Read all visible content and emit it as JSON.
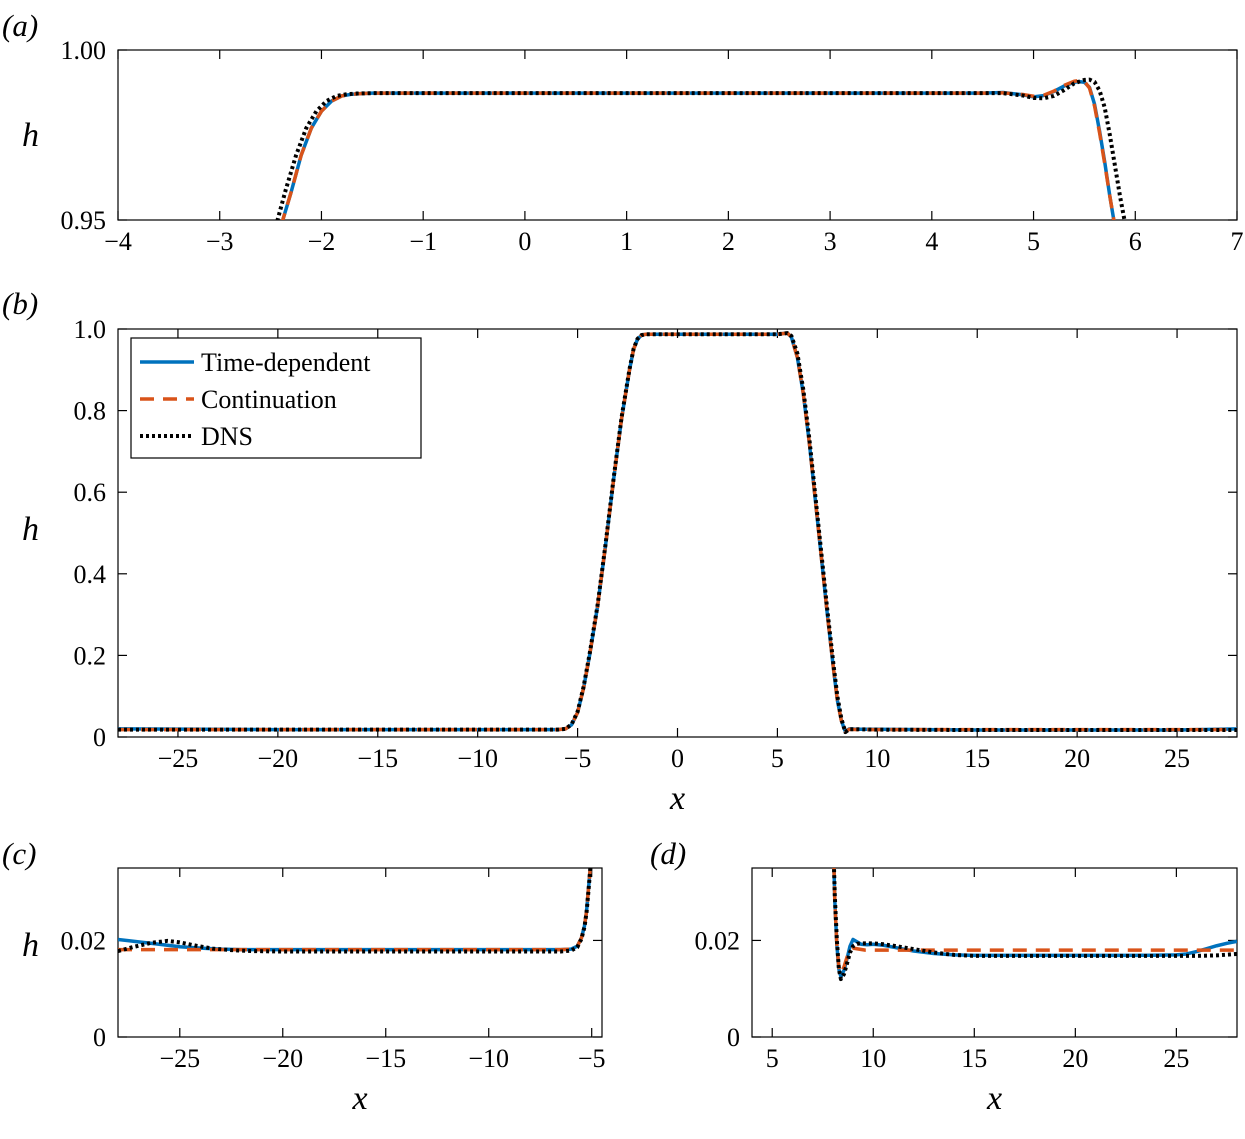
{
  "figure": {
    "panels": [
      {
        "id": "a",
        "label": "(a)"
      },
      {
        "id": "b",
        "label": "(b)"
      },
      {
        "id": "c",
        "label": "(c)"
      },
      {
        "id": "d",
        "label": "(d)"
      }
    ]
  },
  "style": {
    "series_colors": {
      "time_dependent": "#0072BD",
      "continuation": "#D95319",
      "dns": "#000000"
    },
    "line_styles": {
      "time_dependent": "solid",
      "continuation": "dashed",
      "dns": "dotted"
    }
  },
  "chart_data": [
    {
      "panel": "a",
      "type": "line",
      "xlabel": "",
      "ylabel": "h",
      "xlim": [
        -4,
        7
      ],
      "ylim": [
        0.95,
        1.0
      ],
      "xticks": [
        -4,
        -3,
        -2,
        -1,
        0,
        1,
        2,
        3,
        4,
        5,
        6,
        7
      ],
      "xtick_labels": [
        "−4",
        "−3",
        "−2",
        "−1",
        "0",
        "1",
        "2",
        "3",
        "4",
        "5",
        "6",
        "7"
      ],
      "yticks": [
        0.95,
        1.0
      ],
      "ytick_labels": [
        "0.95",
        "1.00"
      ],
      "grid": false,
      "series": [
        {
          "key": "time_dependent",
          "x": [
            -2.4,
            -2.3,
            -2.2,
            -2.1,
            -2.0,
            -1.9,
            -1.8,
            -1.7,
            -1.6,
            -1.5,
            -1.0,
            0,
            2,
            4,
            4.5,
            4.7,
            4.9,
            5.0,
            5.1,
            5.2,
            5.3,
            5.4,
            5.45,
            5.5,
            5.55,
            5.6,
            5.65,
            5.7,
            5.75,
            5.8
          ],
          "y": [
            0.948,
            0.958,
            0.969,
            0.977,
            0.982,
            0.985,
            0.9865,
            0.987,
            0.9872,
            0.9873,
            0.9873,
            0.9873,
            0.9873,
            0.9873,
            0.9873,
            0.9875,
            0.9868,
            0.9862,
            0.9866,
            0.9878,
            0.9894,
            0.9905,
            0.9907,
            0.9905,
            0.989,
            0.984,
            0.976,
            0.967,
            0.957,
            0.948
          ]
        },
        {
          "key": "continuation",
          "x": [
            -2.4,
            -2.3,
            -2.2,
            -2.1,
            -2.0,
            -1.9,
            -1.8,
            -1.7,
            -1.6,
            -1.5,
            -1.0,
            0,
            2,
            4,
            4.5,
            4.7,
            4.9,
            5.0,
            5.1,
            5.2,
            5.3,
            5.4,
            5.45,
            5.5,
            5.55,
            5.6,
            5.65,
            5.7,
            5.75,
            5.8
          ],
          "y": [
            0.948,
            0.958,
            0.969,
            0.977,
            0.982,
            0.985,
            0.9865,
            0.987,
            0.9872,
            0.9873,
            0.9873,
            0.9873,
            0.9873,
            0.9873,
            0.9873,
            0.9874,
            0.9869,
            0.9864,
            0.9867,
            0.9879,
            0.9896,
            0.9908,
            0.991,
            0.9908,
            0.9888,
            0.9835,
            0.9755,
            0.9665,
            0.957,
            0.948
          ]
        },
        {
          "key": "dns",
          "x": [
            -2.45,
            -2.35,
            -2.25,
            -2.15,
            -2.05,
            -1.95,
            -1.85,
            -1.75,
            -1.65,
            -1.5,
            -1.0,
            0,
            2,
            4,
            4.5,
            4.7,
            4.9,
            5.0,
            5.1,
            5.2,
            5.3,
            5.4,
            5.5,
            5.55,
            5.6,
            5.65,
            5.7,
            5.75,
            5.8,
            5.85,
            5.9
          ],
          "y": [
            0.948,
            0.959,
            0.969,
            0.977,
            0.982,
            0.985,
            0.9865,
            0.987,
            0.9872,
            0.9873,
            0.9873,
            0.9873,
            0.9873,
            0.9873,
            0.9873,
            0.9873,
            0.9866,
            0.9859,
            0.9858,
            0.9865,
            0.9882,
            0.9902,
            0.9912,
            0.9913,
            0.9906,
            0.988,
            0.983,
            0.975,
            0.966,
            0.957,
            0.949
          ]
        }
      ]
    },
    {
      "panel": "b",
      "type": "line",
      "xlabel": "x",
      "ylabel": "h",
      "xlim": [
        -28,
        28
      ],
      "ylim": [
        0,
        1.0
      ],
      "xticks": [
        -25,
        -20,
        -15,
        -10,
        -5,
        0,
        5,
        10,
        15,
        20,
        25
      ],
      "xtick_labels": [
        "−25",
        "−20",
        "−15",
        "−10",
        "−5",
        "0",
        "5",
        "10",
        "15",
        "20",
        "25"
      ],
      "yticks": [
        0,
        0.2,
        0.4,
        0.6,
        0.8,
        1.0
      ],
      "ytick_labels": [
        "0",
        "0.2",
        "0.4",
        "0.6",
        "0.8",
        "1.0"
      ],
      "grid": false,
      "legend": {
        "position": "top-left",
        "entries": [
          {
            "key": "time_dependent",
            "label": "Time-dependent"
          },
          {
            "key": "continuation",
            "label": "Continuation"
          },
          {
            "key": "dns",
            "label": "DNS"
          }
        ]
      },
      "series": [
        {
          "key": "time_dependent",
          "x": [
            -28,
            -20,
            -10,
            -6,
            -5.6,
            -5.3,
            -5.0,
            -4.7,
            -4.4,
            -4.0,
            -3.6,
            -3.2,
            -2.8,
            -2.4,
            -2.2,
            -2.0,
            -1.8,
            -1.6,
            0,
            3,
            5,
            5.3,
            5.5,
            5.7,
            6.0,
            6.3,
            6.6,
            6.9,
            7.2,
            7.5,
            7.8,
            8.0,
            8.2,
            8.4,
            8.6,
            9,
            10,
            15,
            20,
            25,
            28
          ],
          "y": [
            0.02,
            0.018,
            0.018,
            0.018,
            0.02,
            0.03,
            0.06,
            0.12,
            0.2,
            0.32,
            0.47,
            0.63,
            0.78,
            0.9,
            0.95,
            0.975,
            0.985,
            0.987,
            0.987,
            0.987,
            0.987,
            0.989,
            0.99,
            0.98,
            0.93,
            0.84,
            0.72,
            0.58,
            0.44,
            0.3,
            0.17,
            0.09,
            0.04,
            0.013,
            0.02,
            0.019,
            0.019,
            0.017,
            0.017,
            0.017,
            0.02
          ]
        },
        {
          "key": "continuation",
          "x": [
            -28,
            -20,
            -10,
            -6,
            -5.6,
            -5.3,
            -5.0,
            -4.7,
            -4.4,
            -4.0,
            -3.6,
            -3.2,
            -2.8,
            -2.4,
            -2.2,
            -2.0,
            -1.8,
            -1.6,
            0,
            3,
            5,
            5.3,
            5.5,
            5.7,
            6.0,
            6.3,
            6.6,
            6.9,
            7.2,
            7.5,
            7.8,
            8.0,
            8.2,
            8.4,
            8.6,
            9,
            10,
            15,
            20,
            25,
            28
          ],
          "y": [
            0.018,
            0.018,
            0.018,
            0.018,
            0.02,
            0.03,
            0.06,
            0.12,
            0.2,
            0.32,
            0.47,
            0.63,
            0.78,
            0.9,
            0.95,
            0.975,
            0.985,
            0.987,
            0.987,
            0.987,
            0.987,
            0.989,
            0.99,
            0.98,
            0.93,
            0.84,
            0.72,
            0.58,
            0.44,
            0.3,
            0.17,
            0.09,
            0.04,
            0.013,
            0.019,
            0.018,
            0.018,
            0.018,
            0.018,
            0.018,
            0.018
          ]
        },
        {
          "key": "dns",
          "x": [
            -28,
            -20,
            -10,
            -6,
            -5.6,
            -5.3,
            -5.0,
            -4.7,
            -4.4,
            -4.0,
            -3.6,
            -3.2,
            -2.8,
            -2.4,
            -2.2,
            -2.0,
            -1.8,
            -1.6,
            0,
            3,
            5,
            5.3,
            5.5,
            5.7,
            6.0,
            6.3,
            6.6,
            6.9,
            7.2,
            7.5,
            7.8,
            8.0,
            8.2,
            8.4,
            8.6,
            9,
            10,
            15,
            20,
            25,
            28
          ],
          "y": [
            0.018,
            0.018,
            0.018,
            0.018,
            0.02,
            0.031,
            0.062,
            0.123,
            0.203,
            0.323,
            0.473,
            0.633,
            0.783,
            0.902,
            0.951,
            0.976,
            0.985,
            0.987,
            0.987,
            0.987,
            0.987,
            0.989,
            0.99,
            0.983,
            0.94,
            0.85,
            0.73,
            0.59,
            0.45,
            0.31,
            0.18,
            0.1,
            0.045,
            0.012,
            0.019,
            0.019,
            0.018,
            0.017,
            0.017,
            0.017,
            0.017
          ]
        }
      ]
    },
    {
      "panel": "c",
      "type": "line",
      "xlabel": "x",
      "ylabel": "h",
      "xlim": [
        -28,
        -4.5
      ],
      "ylim": [
        0,
        0.035
      ],
      "xticks": [
        -25,
        -20,
        -15,
        -10,
        -5
      ],
      "xtick_labels": [
        "−25",
        "−20",
        "−15",
        "−10",
        "−5"
      ],
      "yticks": [
        0,
        0.02
      ],
      "ytick_labels": [
        "0",
        "0.02"
      ],
      "grid": false,
      "series": [
        {
          "key": "time_dependent",
          "x": [
            -28,
            -27,
            -26,
            -25,
            -24,
            -23,
            -22,
            -20,
            -15,
            -10,
            -6.5,
            -6,
            -5.7,
            -5.5,
            -5.35,
            -5.25,
            -5.15,
            -5.05
          ],
          "y": [
            0.0202,
            0.0197,
            0.0192,
            0.0187,
            0.0184,
            0.0182,
            0.0181,
            0.0181,
            0.0181,
            0.0181,
            0.0181,
            0.0182,
            0.0188,
            0.0205,
            0.023,
            0.026,
            0.031,
            0.036
          ]
        },
        {
          "key": "continuation",
          "x": [
            -28,
            -26,
            -24,
            -22,
            -20,
            -15,
            -10,
            -6.5,
            -6,
            -5.7,
            -5.5,
            -5.35,
            -5.25,
            -5.15,
            -5.05
          ],
          "y": [
            0.0181,
            0.0181,
            0.0181,
            0.0181,
            0.0181,
            0.0181,
            0.0181,
            0.0181,
            0.0182,
            0.0188,
            0.0205,
            0.023,
            0.026,
            0.031,
            0.036
          ]
        },
        {
          "key": "dns",
          "x": [
            -28,
            -27.2,
            -26.4,
            -25.6,
            -25,
            -24.2,
            -23.4,
            -22.5,
            -21.5,
            -20,
            -15,
            -10,
            -6.5,
            -6,
            -5.7,
            -5.5,
            -5.35,
            -5.25,
            -5.15,
            -5.05
          ],
          "y": [
            0.0178,
            0.0187,
            0.0195,
            0.0199,
            0.0196,
            0.0189,
            0.0183,
            0.018,
            0.0178,
            0.0177,
            0.0177,
            0.0177,
            0.0177,
            0.0179,
            0.0186,
            0.0203,
            0.0228,
            0.0258,
            0.0306,
            0.0358
          ]
        }
      ]
    },
    {
      "panel": "d",
      "type": "line",
      "xlabel": "x",
      "ylabel": "",
      "xlim": [
        4,
        28
      ],
      "ylim": [
        0,
        0.035
      ],
      "xticks": [
        5,
        10,
        15,
        20,
        25
      ],
      "xtick_labels": [
        "5",
        "10",
        "15",
        "20",
        "25"
      ],
      "yticks": [
        0,
        0.02
      ],
      "ytick_labels": [
        "0",
        "0.02"
      ],
      "grid": false,
      "series": [
        {
          "key": "time_dependent",
          "x": [
            8.05,
            8.1,
            8.2,
            8.3,
            8.4,
            8.55,
            8.7,
            8.85,
            9.0,
            9.2,
            9.4,
            9.7,
            10,
            10.5,
            11,
            12,
            13,
            14,
            15,
            18,
            21,
            23,
            25,
            25.5,
            26,
            26.5,
            27,
            27.5,
            28
          ],
          "y": [
            0.036,
            0.028,
            0.019,
            0.014,
            0.0125,
            0.0138,
            0.0162,
            0.0188,
            0.0202,
            0.0197,
            0.0192,
            0.0191,
            0.0192,
            0.019,
            0.0186,
            0.0178,
            0.0173,
            0.017,
            0.0169,
            0.0169,
            0.0169,
            0.0169,
            0.017,
            0.0172,
            0.0177,
            0.0183,
            0.0189,
            0.0194,
            0.0198
          ]
        },
        {
          "key": "continuation",
          "x": [
            8.05,
            8.1,
            8.2,
            8.3,
            8.4,
            8.55,
            8.7,
            8.85,
            9.0,
            9.3,
            9.6,
            10,
            11,
            13,
            15,
            20,
            25,
            28
          ],
          "y": [
            0.036,
            0.028,
            0.019,
            0.0145,
            0.0132,
            0.0145,
            0.0165,
            0.018,
            0.0184,
            0.0182,
            0.018,
            0.018,
            0.018,
            0.018,
            0.018,
            0.018,
            0.018,
            0.018
          ]
        },
        {
          "key": "dns",
          "x": [
            8.05,
            8.1,
            8.2,
            8.3,
            8.4,
            8.55,
            8.7,
            8.85,
            9.0,
            9.2,
            9.4,
            9.7,
            10,
            10.5,
            11,
            12,
            13,
            14,
            15,
            18,
            21,
            24,
            26,
            27,
            28
          ],
          "y": [
            0.036,
            0.029,
            0.02,
            0.014,
            0.012,
            0.013,
            0.0152,
            0.0175,
            0.0188,
            0.0193,
            0.0194,
            0.0194,
            0.0194,
            0.0192,
            0.0189,
            0.0182,
            0.0175,
            0.017,
            0.0168,
            0.0168,
            0.0168,
            0.0168,
            0.0168,
            0.0169,
            0.0172
          ]
        }
      ]
    }
  ]
}
